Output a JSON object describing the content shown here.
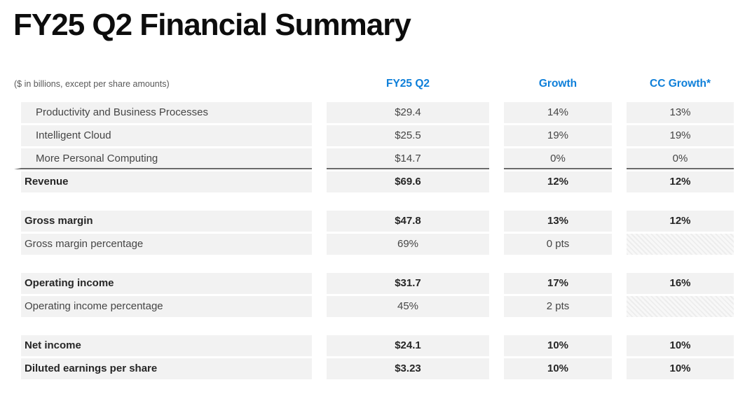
{
  "title": "FY25 Q2 Financial Summary",
  "table": {
    "note": "($ in billions, except per share amounts)",
    "columns": [
      "FY25 Q2",
      "Growth",
      "CC Growth*"
    ],
    "sections": [
      {
        "rows": [
          {
            "label": "Productivity and Business Processes",
            "values": [
              "$29.4",
              "14%",
              "13%"
            ],
            "bold": false,
            "indent": true,
            "rule": false
          },
          {
            "label": "Intelligent Cloud",
            "values": [
              "$25.5",
              "19%",
              "19%"
            ],
            "bold": false,
            "indent": true,
            "rule": false
          },
          {
            "label": "More Personal Computing",
            "values": [
              "$14.7",
              "0%",
              "0%"
            ],
            "bold": false,
            "indent": true,
            "rule": true
          },
          {
            "label": "Revenue",
            "values": [
              "$69.6",
              "12%",
              "12%"
            ],
            "bold": true,
            "indent": false,
            "rule": false
          }
        ]
      },
      {
        "rows": [
          {
            "label": "Gross margin",
            "values": [
              "$47.8",
              "13%",
              "12%"
            ],
            "bold": true,
            "indent": false,
            "rule": false
          },
          {
            "label": "Gross margin percentage",
            "values": [
              "69%",
              "0 pts",
              null
            ],
            "bold": false,
            "indent": false,
            "rule": false
          }
        ]
      },
      {
        "rows": [
          {
            "label": "Operating income",
            "values": [
              "$31.7",
              "17%",
              "16%"
            ],
            "bold": true,
            "indent": false,
            "rule": false
          },
          {
            "label": "Operating income percentage",
            "values": [
              "45%",
              "2 pts",
              null
            ],
            "bold": false,
            "indent": false,
            "rule": false
          }
        ]
      },
      {
        "rows": [
          {
            "label": "Net income",
            "values": [
              "$24.1",
              "10%",
              "10%"
            ],
            "bold": true,
            "indent": false,
            "rule": false
          },
          {
            "label": "Diluted earnings per share",
            "values": [
              "$3.23",
              "10%",
              "10%"
            ],
            "bold": true,
            "indent": false,
            "rule": false
          }
        ]
      }
    ]
  },
  "chart_data": {
    "type": "table",
    "title": "FY25 Q2 Financial Summary",
    "columns": [
      "($ in billions, except per share amounts)",
      "FY25 Q2",
      "Growth",
      "CC Growth*"
    ],
    "rows": [
      [
        "Productivity and Business Processes",
        "$29.4",
        "14%",
        "13%"
      ],
      [
        "Intelligent Cloud",
        "$25.5",
        "19%",
        "19%"
      ],
      [
        "More Personal Computing",
        "$14.7",
        "0%",
        "0%"
      ],
      [
        "Revenue",
        "$69.6",
        "12%",
        "12%"
      ],
      [
        "Gross margin",
        "$47.8",
        "13%",
        "12%"
      ],
      [
        "Gross margin percentage",
        "69%",
        "0 pts",
        ""
      ],
      [
        "Operating income",
        "$31.7",
        "17%",
        "16%"
      ],
      [
        "Operating income percentage",
        "45%",
        "2 pts",
        ""
      ],
      [
        "Net income",
        "$24.1",
        "10%",
        "10%"
      ],
      [
        "Diluted earnings per share",
        "$3.23",
        "10%",
        "10%"
      ]
    ]
  },
  "colors": {
    "accent_blue": "#0E7FD9",
    "row_background": "#F2F2F2",
    "title_text": "#0D0D0D",
    "note_text": "#595959",
    "body_text": "#454545",
    "bold_text": "#262626",
    "total_rule": "#6A6A6A",
    "page_background": "#FFFFFF"
  }
}
